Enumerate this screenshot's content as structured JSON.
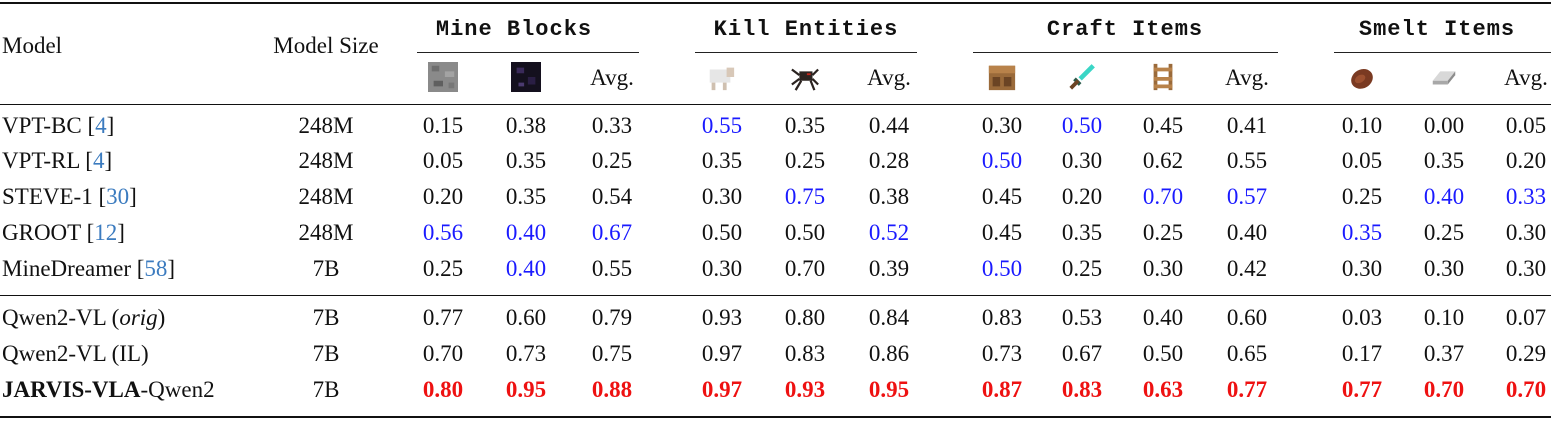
{
  "header": {
    "model": "Model",
    "model_size": "Model Size",
    "avg": "Avg.",
    "groups": [
      "Mine Blocks",
      "Kill Entities",
      "Craft Items",
      "Smelt Items"
    ]
  },
  "icons": [
    "stone-block",
    "obsidian-block",
    "sheep",
    "spider",
    "crafting-table",
    "diamond-sword",
    "ladder",
    "cooked-beef",
    "iron-ingot"
  ],
  "colors": {
    "best": "#ee1111",
    "second": "#1a1aff",
    "ref": "#3b7bbf"
  },
  "rows": [
    {
      "name": "VPT-BC ",
      "ref": "4",
      "size": "248M",
      "vals": [
        "0.15",
        "0.38",
        "0.33",
        "0.55",
        "0.35",
        "0.44",
        "0.30",
        "0.50",
        "0.45",
        "0.41",
        "0.10",
        "0.00",
        "0.05"
      ],
      "styles": [
        "",
        "",
        "",
        "b",
        "",
        "",
        "",
        "b",
        "",
        "",
        "",
        "",
        ""
      ]
    },
    {
      "name": "VPT-RL ",
      "ref": "4",
      "size": "248M",
      "vals": [
        "0.05",
        "0.35",
        "0.25",
        "0.35",
        "0.25",
        "0.28",
        "0.50",
        "0.30",
        "0.62",
        "0.55",
        "0.05",
        "0.35",
        "0.20"
      ],
      "styles": [
        "",
        "",
        "",
        "",
        "",
        "",
        "b",
        "",
        "",
        "",
        "",
        "",
        ""
      ]
    },
    {
      "name": "STEVE-1 ",
      "ref": "30",
      "size": "248M",
      "vals": [
        "0.20",
        "0.35",
        "0.54",
        "0.30",
        "0.75",
        "0.38",
        "0.45",
        "0.20",
        "0.70",
        "0.57",
        "0.25",
        "0.40",
        "0.33"
      ],
      "styles": [
        "",
        "",
        "",
        "",
        "b",
        "",
        "",
        "",
        "b",
        "b",
        "",
        "b",
        "b"
      ]
    },
    {
      "name": "GROOT ",
      "ref": "12",
      "size": "248M",
      "vals": [
        "0.56",
        "0.40",
        "0.67",
        "0.50",
        "0.50",
        "0.52",
        "0.45",
        "0.35",
        "0.25",
        "0.40",
        "0.35",
        "0.25",
        "0.30"
      ],
      "styles": [
        "b",
        "b",
        "b",
        "",
        "",
        "b",
        "",
        "",
        "",
        "",
        "b",
        "",
        ""
      ]
    },
    {
      "name": "MineDreamer ",
      "ref": "58",
      "size": "7B",
      "vals": [
        "0.25",
        "0.40",
        "0.55",
        "0.30",
        "0.70",
        "0.39",
        "0.50",
        "0.25",
        "0.30",
        "0.42",
        "0.30",
        "0.30",
        "0.30"
      ],
      "styles": [
        "",
        "b",
        "",
        "",
        "",
        "",
        "b",
        "",
        "",
        "",
        "",
        "",
        ""
      ]
    },
    {
      "name": "Qwen2-VL (",
      "name_italic": "orig",
      "name_tail": ")",
      "size": "7B",
      "vals": [
        "0.77",
        "0.60",
        "0.79",
        "0.93",
        "0.80",
        "0.84",
        "0.83",
        "0.53",
        "0.40",
        "0.60",
        "0.03",
        "0.10",
        "0.07"
      ],
      "styles": [
        "",
        "",
        "",
        "",
        "",
        "",
        "",
        "",
        "",
        "",
        "",
        "",
        ""
      ]
    },
    {
      "name": "Qwen2-VL (IL)",
      "size": "7B",
      "vals": [
        "0.70",
        "0.73",
        "0.75",
        "0.97",
        "0.83",
        "0.86",
        "0.73",
        "0.67",
        "0.50",
        "0.65",
        "0.17",
        "0.37",
        "0.29"
      ],
      "styles": [
        "",
        "",
        "",
        "",
        "",
        "",
        "",
        "",
        "",
        "",
        "",
        "",
        ""
      ]
    },
    {
      "name_bold": "JARVIS-VLA",
      "name": "-Qwen2",
      "size": "7B",
      "vals": [
        "0.80",
        "0.95",
        "0.88",
        "0.97",
        "0.93",
        "0.95",
        "0.87",
        "0.83",
        "0.63",
        "0.77",
        "0.77",
        "0.70",
        "0.70"
      ],
      "styles": [
        "r",
        "r",
        "r",
        "r",
        "r",
        "r",
        "r",
        "r",
        "r",
        "r",
        "r",
        "r",
        "r"
      ]
    }
  ]
}
